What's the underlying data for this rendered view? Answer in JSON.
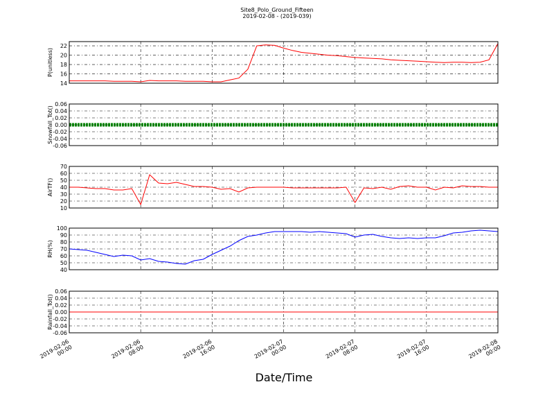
{
  "chart_data": [
    {
      "type": "line",
      "title": "Site8_Polo_Ground_Fifteen",
      "subtitle": "2019-02-08 - (2019-039)",
      "y_label": "P(unitless)",
      "x": [
        "2019-02-06 00:00",
        "2019-02-06 01:00",
        "2019-02-06 02:00",
        "2019-02-06 03:00",
        "2019-02-06 04:00",
        "2019-02-06 05:00",
        "2019-02-06 06:00",
        "2019-02-06 07:00",
        "2019-02-06 08:00",
        "2019-02-06 09:00",
        "2019-02-06 10:00",
        "2019-02-06 11:00",
        "2019-02-06 12:00",
        "2019-02-06 13:00",
        "2019-02-06 14:00",
        "2019-02-06 15:00",
        "2019-02-06 16:00",
        "2019-02-06 17:00",
        "2019-02-06 18:00",
        "2019-02-06 19:00",
        "2019-02-06 20:00",
        "2019-02-06 21:00",
        "2019-02-06 22:00",
        "2019-02-06 23:00",
        "2019-02-07 00:00",
        "2019-02-07 01:00",
        "2019-02-07 02:00",
        "2019-02-07 03:00",
        "2019-02-07 04:00",
        "2019-02-07 05:00",
        "2019-02-07 06:00",
        "2019-02-07 07:00",
        "2019-02-07 08:00",
        "2019-02-07 09:00",
        "2019-02-07 10:00",
        "2019-02-07 11:00",
        "2019-02-07 12:00",
        "2019-02-07 13:00",
        "2019-02-07 14:00",
        "2019-02-07 15:00",
        "2019-02-07 16:00",
        "2019-02-07 17:00",
        "2019-02-07 18:00",
        "2019-02-07 19:00",
        "2019-02-07 20:00",
        "2019-02-07 21:00",
        "2019-02-07 22:00",
        "2019-02-07 23:00",
        "2019-02-08 00:00"
      ],
      "series": [
        {
          "color": "#ff0000",
          "values": [
            14.5,
            14.5,
            14.5,
            14.5,
            14.5,
            14.4,
            14.4,
            14.4,
            14.3,
            14.6,
            14.5,
            14.5,
            14.5,
            14.4,
            14.4,
            14.4,
            14.3,
            14.3,
            14.7,
            15.1,
            17.0,
            22.0,
            22.2,
            22.1,
            21.5,
            21.0,
            20.6,
            20.4,
            20.2,
            20.0,
            19.9,
            19.7,
            19.5,
            19.4,
            19.3,
            19.2,
            19.0,
            18.9,
            18.8,
            18.7,
            18.6,
            18.5,
            18.4,
            18.5,
            18.5,
            18.4,
            18.5,
            19.0,
            22.5
          ]
        }
      ],
      "xlim": [
        "2019-02-06 00:00",
        "2019-02-08 00:00"
      ],
      "ylim": [
        14,
        22.9
      ],
      "yticks": [
        14,
        16,
        18,
        20,
        22
      ],
      "grid": true
    },
    {
      "type": "line",
      "y_label": "Snowfall_Tot()",
      "x": [
        "2019-02-06 00:00",
        "2019-02-06 01:00",
        "2019-02-06 02:00",
        "2019-02-06 03:00",
        "2019-02-06 04:00",
        "2019-02-06 05:00",
        "2019-02-06 06:00",
        "2019-02-06 07:00",
        "2019-02-06 08:00",
        "2019-02-06 09:00",
        "2019-02-06 10:00",
        "2019-02-06 11:00",
        "2019-02-06 12:00",
        "2019-02-06 13:00",
        "2019-02-06 14:00",
        "2019-02-06 15:00",
        "2019-02-06 16:00",
        "2019-02-06 17:00",
        "2019-02-06 18:00",
        "2019-02-06 19:00",
        "2019-02-06 20:00",
        "2019-02-06 21:00",
        "2019-02-06 22:00",
        "2019-02-06 23:00",
        "2019-02-07 00:00",
        "2019-02-07 01:00",
        "2019-02-07 02:00",
        "2019-02-07 03:00",
        "2019-02-07 04:00",
        "2019-02-07 05:00",
        "2019-02-07 06:00",
        "2019-02-07 07:00",
        "2019-02-07 08:00",
        "2019-02-07 09:00",
        "2019-02-07 10:00",
        "2019-02-07 11:00",
        "2019-02-07 12:00",
        "2019-02-07 13:00",
        "2019-02-07 14:00",
        "2019-02-07 15:00",
        "2019-02-07 16:00",
        "2019-02-07 17:00",
        "2019-02-07 18:00",
        "2019-02-07 19:00",
        "2019-02-07 20:00",
        "2019-02-07 21:00",
        "2019-02-07 22:00",
        "2019-02-07 23:00",
        "2019-02-08 00:00"
      ],
      "series": [
        {
          "color": "#008000",
          "values": [
            0,
            0,
            0,
            0,
            0,
            0,
            0,
            0,
            0,
            0,
            0,
            0,
            0,
            0,
            0,
            0,
            0,
            0,
            0,
            0,
            0,
            0,
            0,
            0,
            0,
            0,
            0,
            0,
            0,
            0,
            0,
            0,
            0,
            0,
            0,
            0,
            0,
            0,
            0,
            0,
            0,
            0,
            0,
            0,
            0,
            0,
            0,
            0,
            0
          ]
        }
      ],
      "xlim": [
        "2019-02-06 00:00",
        "2019-02-08 00:00"
      ],
      "ylim": [
        -0.06,
        0.06
      ],
      "yticks": [
        -0.06,
        -0.04,
        -0.02,
        {
          "value": 0,
          "label": "0.00"
        },
        0.02,
        0.04,
        0.06
      ],
      "grid": true
    },
    {
      "type": "line",
      "y_label": "AirTF()",
      "x": [
        "2019-02-06 00:00",
        "2019-02-06 01:00",
        "2019-02-06 02:00",
        "2019-02-06 03:00",
        "2019-02-06 04:00",
        "2019-02-06 05:00",
        "2019-02-06 06:00",
        "2019-02-06 07:00",
        "2019-02-06 08:00",
        "2019-02-06 09:00",
        "2019-02-06 10:00",
        "2019-02-06 11:00",
        "2019-02-06 12:00",
        "2019-02-06 13:00",
        "2019-02-06 14:00",
        "2019-02-06 15:00",
        "2019-02-06 16:00",
        "2019-02-06 17:00",
        "2019-02-06 18:00",
        "2019-02-06 19:00",
        "2019-02-06 20:00",
        "2019-02-06 21:00",
        "2019-02-06 22:00",
        "2019-02-06 23:00",
        "2019-02-07 00:00",
        "2019-02-07 01:00",
        "2019-02-07 02:00",
        "2019-02-07 03:00",
        "2019-02-07 04:00",
        "2019-02-07 05:00",
        "2019-02-07 06:00",
        "2019-02-07 07:00",
        "2019-02-07 08:00",
        "2019-02-07 09:00",
        "2019-02-07 10:00",
        "2019-02-07 11:00",
        "2019-02-07 12:00",
        "2019-02-07 13:00",
        "2019-02-07 14:00",
        "2019-02-07 15:00",
        "2019-02-07 16:00",
        "2019-02-07 17:00",
        "2019-02-07 18:00",
        "2019-02-07 19:00",
        "2019-02-07 20:00",
        "2019-02-07 21:00",
        "2019-02-07 22:00",
        "2019-02-07 23:00",
        "2019-02-08 00:00"
      ],
      "series": [
        {
          "color": "#ff0000",
          "values": [
            40,
            40,
            39,
            38,
            38,
            36,
            36,
            38,
            15,
            58,
            46,
            45,
            47,
            44,
            41,
            41,
            40,
            37,
            38,
            33,
            39,
            40,
            40,
            40,
            40,
            39,
            39,
            39,
            39,
            39,
            39,
            40,
            18,
            39,
            38,
            40,
            37,
            41,
            42,
            40,
            40,
            36,
            40,
            39,
            42,
            41,
            41,
            40,
            40
          ]
        }
      ],
      "xlim": [
        "2019-02-06 00:00",
        "2019-02-08 00:00"
      ],
      "ylim": [
        10,
        70
      ],
      "yticks": [
        10,
        20,
        30,
        40,
        50,
        60,
        70
      ],
      "grid": true
    },
    {
      "type": "line",
      "y_label": "RH(%)",
      "x": [
        "2019-02-06 00:00",
        "2019-02-06 01:00",
        "2019-02-06 02:00",
        "2019-02-06 03:00",
        "2019-02-06 04:00",
        "2019-02-06 05:00",
        "2019-02-06 06:00",
        "2019-02-06 07:00",
        "2019-02-06 08:00",
        "2019-02-06 09:00",
        "2019-02-06 10:00",
        "2019-02-06 11:00",
        "2019-02-06 12:00",
        "2019-02-06 13:00",
        "2019-02-06 14:00",
        "2019-02-06 15:00",
        "2019-02-06 16:00",
        "2019-02-06 17:00",
        "2019-02-06 18:00",
        "2019-02-06 19:00",
        "2019-02-06 20:00",
        "2019-02-06 21:00",
        "2019-02-06 22:00",
        "2019-02-06 23:00",
        "2019-02-07 00:00",
        "2019-02-07 01:00",
        "2019-02-07 02:00",
        "2019-02-07 03:00",
        "2019-02-07 04:00",
        "2019-02-07 05:00",
        "2019-02-07 06:00",
        "2019-02-07 07:00",
        "2019-02-07 08:00",
        "2019-02-07 09:00",
        "2019-02-07 10:00",
        "2019-02-07 11:00",
        "2019-02-07 12:00",
        "2019-02-07 13:00",
        "2019-02-07 14:00",
        "2019-02-07 15:00",
        "2019-02-07 16:00",
        "2019-02-07 17:00",
        "2019-02-07 18:00",
        "2019-02-07 19:00",
        "2019-02-07 20:00",
        "2019-02-07 21:00",
        "2019-02-07 22:00",
        "2019-02-07 23:00",
        "2019-02-08 00:00"
      ],
      "series": [
        {
          "color": "#0000ff",
          "values": [
            70,
            69,
            68,
            65,
            62,
            59,
            61,
            60,
            54,
            56,
            52,
            51,
            49,
            48,
            53,
            55,
            62,
            68,
            74,
            82,
            88,
            90,
            93,
            95,
            95,
            95,
            95,
            94,
            95,
            94,
            93,
            92,
            87,
            90,
            91,
            88,
            86,
            85,
            86,
            85,
            86,
            86,
            89,
            93,
            94,
            96,
            97,
            96,
            95
          ]
        }
      ],
      "xlim": [
        "2019-02-06 00:00",
        "2019-02-08 00:00"
      ],
      "ylim": [
        40,
        100
      ],
      "yticks": [
        40,
        50,
        60,
        70,
        80,
        90,
        100
      ],
      "grid": true
    },
    {
      "type": "line",
      "y_label": "Rainfall_Tot()",
      "x_label": "Date/Time",
      "x": [
        "2019-02-06 00:00",
        "2019-02-06 01:00",
        "2019-02-06 02:00",
        "2019-02-06 03:00",
        "2019-02-06 04:00",
        "2019-02-06 05:00",
        "2019-02-06 06:00",
        "2019-02-06 07:00",
        "2019-02-06 08:00",
        "2019-02-06 09:00",
        "2019-02-06 10:00",
        "2019-02-06 11:00",
        "2019-02-06 12:00",
        "2019-02-06 13:00",
        "2019-02-06 14:00",
        "2019-02-06 15:00",
        "2019-02-06 16:00",
        "2019-02-06 17:00",
        "2019-02-06 18:00",
        "2019-02-06 19:00",
        "2019-02-06 20:00",
        "2019-02-06 21:00",
        "2019-02-06 22:00",
        "2019-02-06 23:00",
        "2019-02-07 00:00",
        "2019-02-07 01:00",
        "2019-02-07 02:00",
        "2019-02-07 03:00",
        "2019-02-07 04:00",
        "2019-02-07 05:00",
        "2019-02-07 06:00",
        "2019-02-07 07:00",
        "2019-02-07 08:00",
        "2019-02-07 09:00",
        "2019-02-07 10:00",
        "2019-02-07 11:00",
        "2019-02-07 12:00",
        "2019-02-07 13:00",
        "2019-02-07 14:00",
        "2019-02-07 15:00",
        "2019-02-07 16:00",
        "2019-02-07 17:00",
        "2019-02-07 18:00",
        "2019-02-07 19:00",
        "2019-02-07 20:00",
        "2019-02-07 21:00",
        "2019-02-07 22:00",
        "2019-02-07 23:00",
        "2019-02-08 00:00"
      ],
      "series": [
        {
          "color": "#ff0000",
          "values": [
            0,
            0,
            0,
            0,
            0,
            0,
            0,
            0,
            0,
            0,
            0,
            0,
            0,
            0,
            0,
            0,
            0,
            0,
            0,
            0,
            0,
            0,
            0,
            0,
            0,
            0,
            0,
            0,
            0,
            0,
            0,
            0,
            0,
            0,
            0,
            0,
            0,
            0,
            0,
            0,
            0,
            0,
            0,
            0,
            0,
            0,
            0,
            0,
            0
          ]
        }
      ],
      "xlim": [
        "2019-02-06 00:00",
        "2019-02-08 00:00"
      ],
      "ylim": [
        -0.06,
        0.06
      ],
      "yticks": [
        -0.06,
        -0.04,
        -0.02,
        {
          "value": 0,
          "label": "0.00"
        },
        0.02,
        0.04,
        0.06
      ],
      "xticks": [
        {
          "value": "2019-02-06 00:00",
          "label": "2019-02-06\n00:00"
        },
        {
          "value": "2019-02-06 08:00",
          "label": "2019-02-06\n08:00"
        },
        {
          "value": "2019-02-06 16:00",
          "label": "2019-02-06\n16:00"
        },
        {
          "value": "2019-02-07 00:00",
          "label": "2019-02-07\n00:00"
        },
        {
          "value": "2019-02-07 08:00",
          "label": "2019-02-07\n08:00"
        },
        {
          "value": "2019-02-07 16:00",
          "label": "2019-02-07\n16:00"
        },
        {
          "value": "2019-02-08 00:00",
          "label": "2019-02-08\n00:00"
        }
      ],
      "grid": true
    }
  ]
}
